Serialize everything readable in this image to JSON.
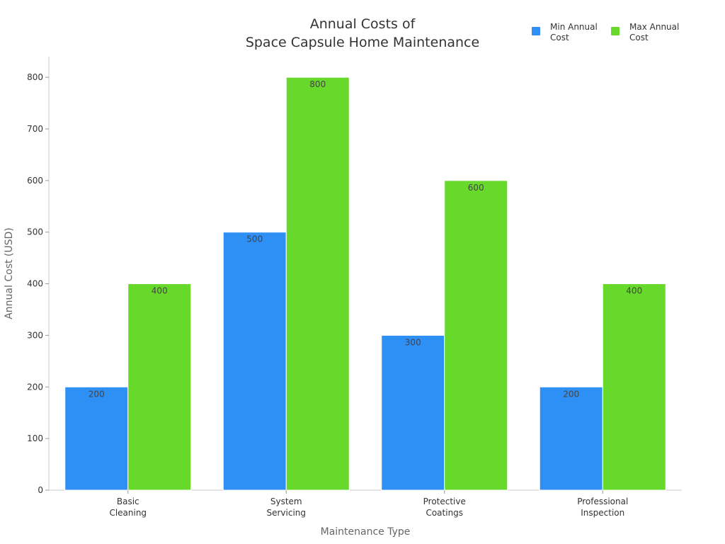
{
  "chart_data": {
    "type": "bar",
    "title_lines": [
      "Annual Costs of",
      "Space Capsule Home Maintenance"
    ],
    "xlabel": "Maintenance Type",
    "ylabel": "Annual Cost (USD)",
    "categories": [
      [
        "Basic",
        "Cleaning"
      ],
      [
        "System",
        "Servicing"
      ],
      [
        "Protective",
        "Coatings"
      ],
      [
        "Professional",
        "Inspection"
      ]
    ],
    "series": [
      {
        "name_lines": [
          "Min Annual",
          "Cost"
        ],
        "color": "#2e8ff5",
        "values": [
          200,
          500,
          300,
          200
        ]
      },
      {
        "name_lines": [
          "Max Annual",
          "Cost"
        ],
        "color": "#66d92b",
        "values": [
          400,
          800,
          600,
          400
        ]
      }
    ],
    "ylim": [
      0,
      840
    ],
    "yticks": [
      0,
      100,
      200,
      300,
      400,
      500,
      600,
      700,
      800
    ],
    "grid": false,
    "legend_position": "top-right"
  }
}
